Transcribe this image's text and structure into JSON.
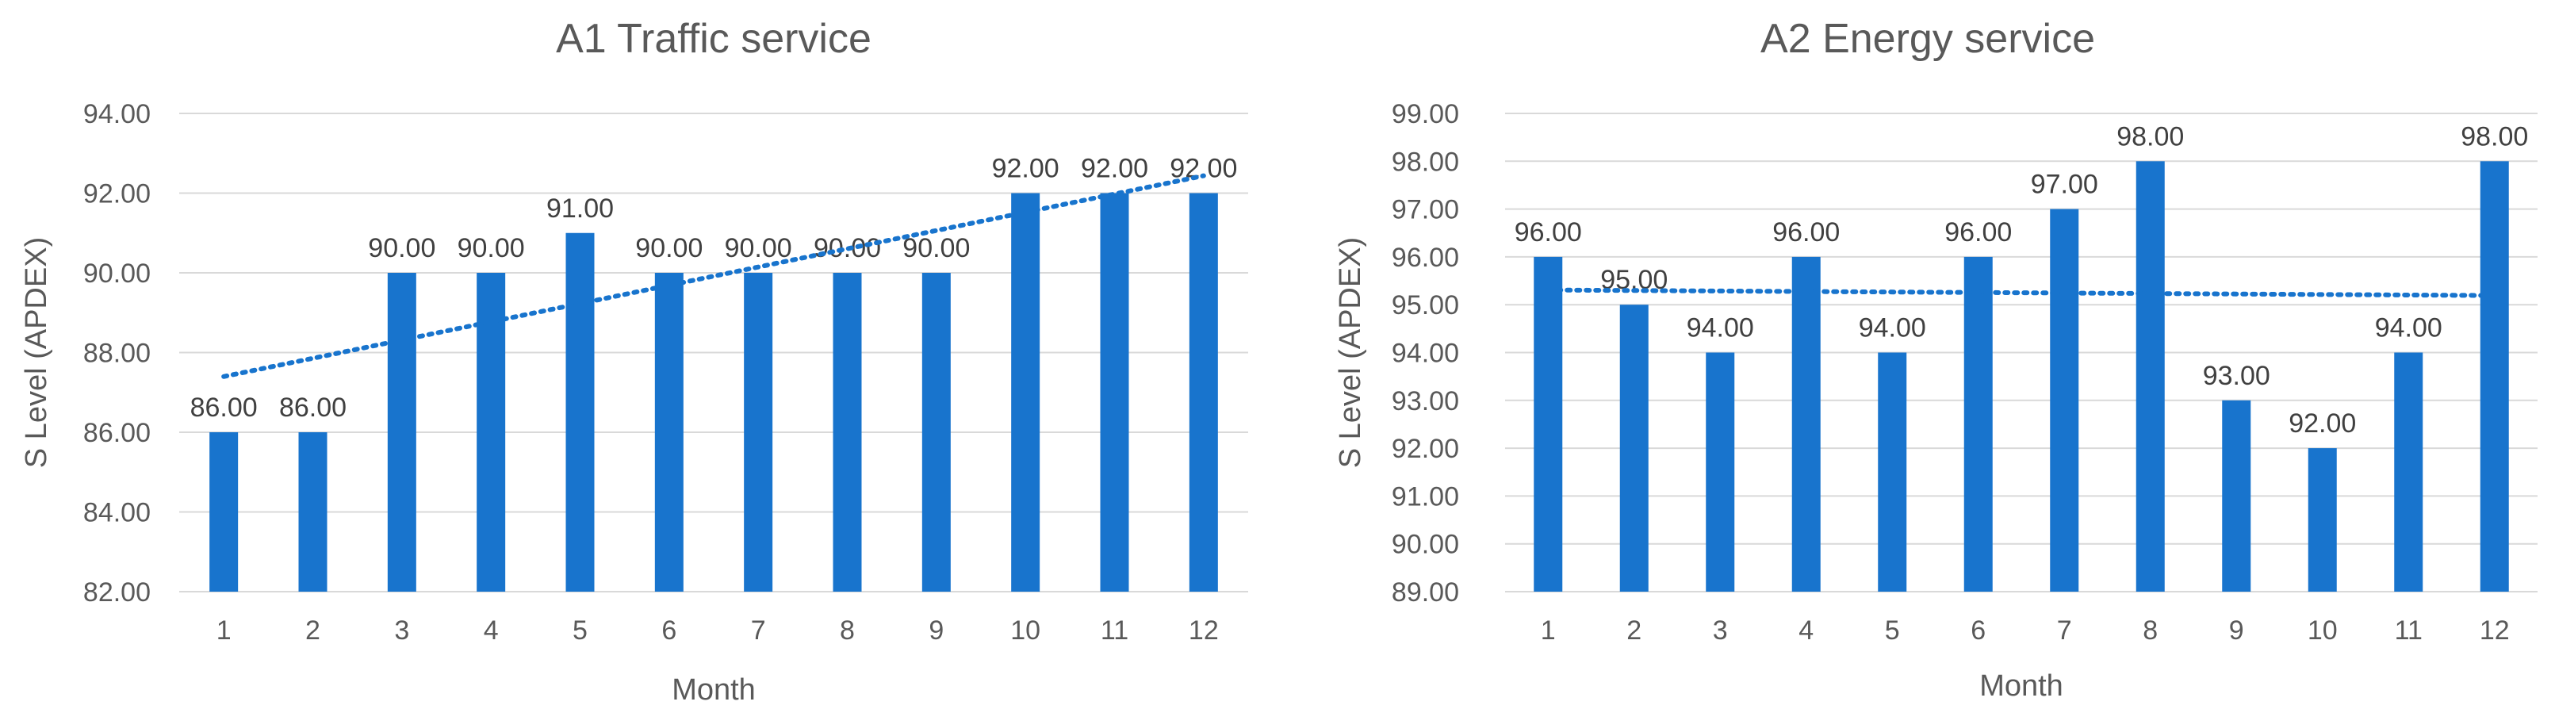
{
  "chart_data": [
    {
      "type": "bar",
      "title": "A1 Traffic service",
      "xlabel": "Month",
      "ylabel": "S Level (APDEX)",
      "categories": [
        "1",
        "2",
        "3",
        "4",
        "5",
        "6",
        "7",
        "8",
        "9",
        "10",
        "11",
        "12"
      ],
      "values": [
        86,
        86,
        90,
        90,
        91,
        90,
        90,
        90,
        90,
        92,
        92,
        92
      ],
      "data_labels": [
        "86.00",
        "86.00",
        "90.00",
        "90.00",
        "91.00",
        "90.00",
        "90.00",
        "90.00",
        "90.00",
        "92.00",
        "92.00",
        "92.00"
      ],
      "ylim": [
        82,
        94
      ],
      "yticks": [
        82,
        84,
        86,
        88,
        90,
        92,
        94
      ],
      "ytick_labels": [
        "82.00",
        "84.00",
        "86.00",
        "88.00",
        "90.00",
        "92.00",
        "94.00"
      ],
      "trendline": {
        "type": "linear",
        "style": "dotted"
      },
      "grid": true,
      "legend": "none",
      "bar_color": "#1874CD"
    },
    {
      "type": "bar",
      "title": "A2 Energy service",
      "xlabel": "Month",
      "ylabel": "S Level (APDEX)",
      "categories": [
        "1",
        "2",
        "3",
        "4",
        "5",
        "6",
        "7",
        "8",
        "9",
        "10",
        "11",
        "12"
      ],
      "values": [
        96,
        95,
        94,
        96,
        94,
        96,
        97,
        98,
        93,
        92,
        94,
        98
      ],
      "data_labels": [
        "96.00",
        "95.00",
        "94.00",
        "96.00",
        "94.00",
        "96.00",
        "97.00",
        "98.00",
        "93.00",
        "92.00",
        "94.00",
        "98.00"
      ],
      "ylim": [
        89,
        99
      ],
      "yticks": [
        89,
        90,
        91,
        92,
        93,
        94,
        95,
        96,
        97,
        98,
        99
      ],
      "ytick_labels": [
        "89.00",
        "90.00",
        "91.00",
        "92.00",
        "93.00",
        "94.00",
        "95.00",
        "96.00",
        "97.00",
        "98.00",
        "99.00"
      ],
      "trendline": {
        "type": "linear",
        "style": "dotted"
      },
      "grid": true,
      "legend": "none",
      "bar_color": "#1874CD"
    }
  ]
}
